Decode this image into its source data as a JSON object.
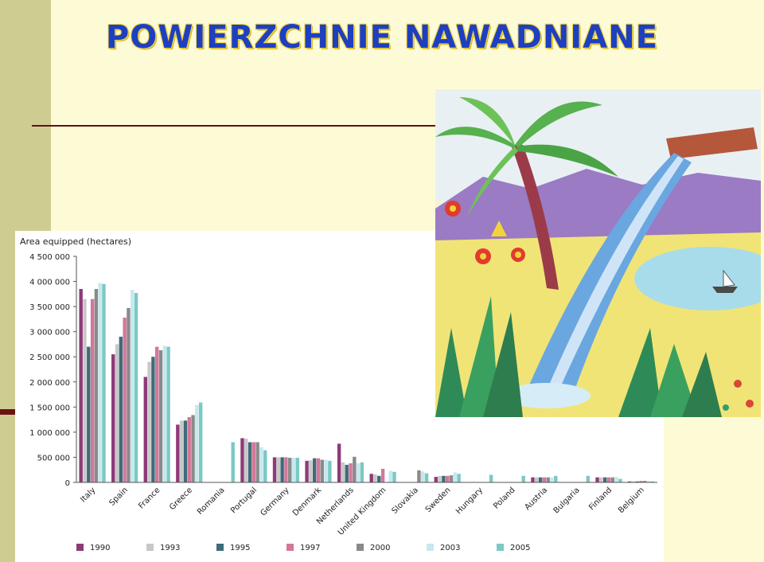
{
  "slide": {
    "title": "POWIERZCHNIE NAWADNIANE"
  },
  "colors": {
    "background": "#fdfbd6",
    "sidebar": "#cfcc92",
    "accent": "#6b1313",
    "title": "#1d3fc0"
  },
  "illustration": {
    "icon": "tropical-waterfall-drawing"
  },
  "chart_data": {
    "type": "bar",
    "ylabel": "Area equipped (hectares)",
    "ylim": [
      0,
      4500000
    ],
    "y_ticks": [
      0,
      500000,
      1000000,
      1500000,
      2000000,
      2500000,
      3000000,
      3500000,
      4000000,
      4500000
    ],
    "y_tick_labels": [
      "0",
      "500 000",
      "1 000 000",
      "1 500 000",
      "2 000 000",
      "2 500 000",
      "3 000 000",
      "3 500 000",
      "4 000 000",
      "4 500 000"
    ],
    "grid": false,
    "legend_position": "bottom",
    "categories": [
      "Italy",
      "Spain",
      "France",
      "Greece",
      "Romania",
      "Portugal",
      "Germany",
      "Denmark",
      "Netherlands",
      "United Kingdom",
      "Slovakia",
      "Sweden",
      "Hungary",
      "Poland",
      "Austria",
      "Bulgaria",
      "Finland",
      "Belgium"
    ],
    "series": [
      {
        "name": "1990",
        "color": "#8e3a78",
        "values": [
          3850000,
          2550000,
          2100000,
          1150000,
          null,
          880000,
          500000,
          430000,
          770000,
          170000,
          null,
          110000,
          null,
          null,
          100000,
          null,
          100000,
          20000
        ]
      },
      {
        "name": "1993",
        "color": "#c8c8c8",
        "values": [
          3650000,
          2750000,
          2400000,
          1230000,
          null,
          870000,
          500000,
          440000,
          400000,
          160000,
          null,
          130000,
          null,
          null,
          100000,
          null,
          100000,
          20000
        ]
      },
      {
        "name": "1995",
        "color": "#3e6c78",
        "values": [
          2700000,
          2900000,
          2500000,
          1230000,
          null,
          800000,
          500000,
          480000,
          350000,
          130000,
          null,
          130000,
          null,
          null,
          100000,
          null,
          100000,
          20000
        ]
      },
      {
        "name": "1997",
        "color": "#d4779a",
        "values": [
          3650000,
          3280000,
          2700000,
          1300000,
          null,
          800000,
          500000,
          480000,
          380000,
          270000,
          null,
          130000,
          null,
          null,
          100000,
          null,
          100000,
          30000
        ]
      },
      {
        "name": "2000",
        "color": "#8a8a8a",
        "values": [
          3850000,
          3470000,
          2630000,
          1340000,
          null,
          800000,
          490000,
          450000,
          510000,
          null,
          240000,
          140000,
          null,
          null,
          100000,
          null,
          100000,
          30000
        ]
      },
      {
        "name": "2003",
        "color": "#c5e8ef",
        "values": [
          3970000,
          3830000,
          2720000,
          1540000,
          null,
          700000,
          490000,
          450000,
          380000,
          230000,
          220000,
          200000,
          null,
          null,
          100000,
          null,
          110000,
          30000
        ]
      },
      {
        "name": "2005",
        "color": "#7cc8c4",
        "values": [
          3950000,
          3770000,
          2700000,
          1590000,
          800000,
          640000,
          490000,
          430000,
          400000,
          210000,
          180000,
          170000,
          150000,
          130000,
          130000,
          130000,
          70000,
          20000
        ]
      }
    ]
  }
}
